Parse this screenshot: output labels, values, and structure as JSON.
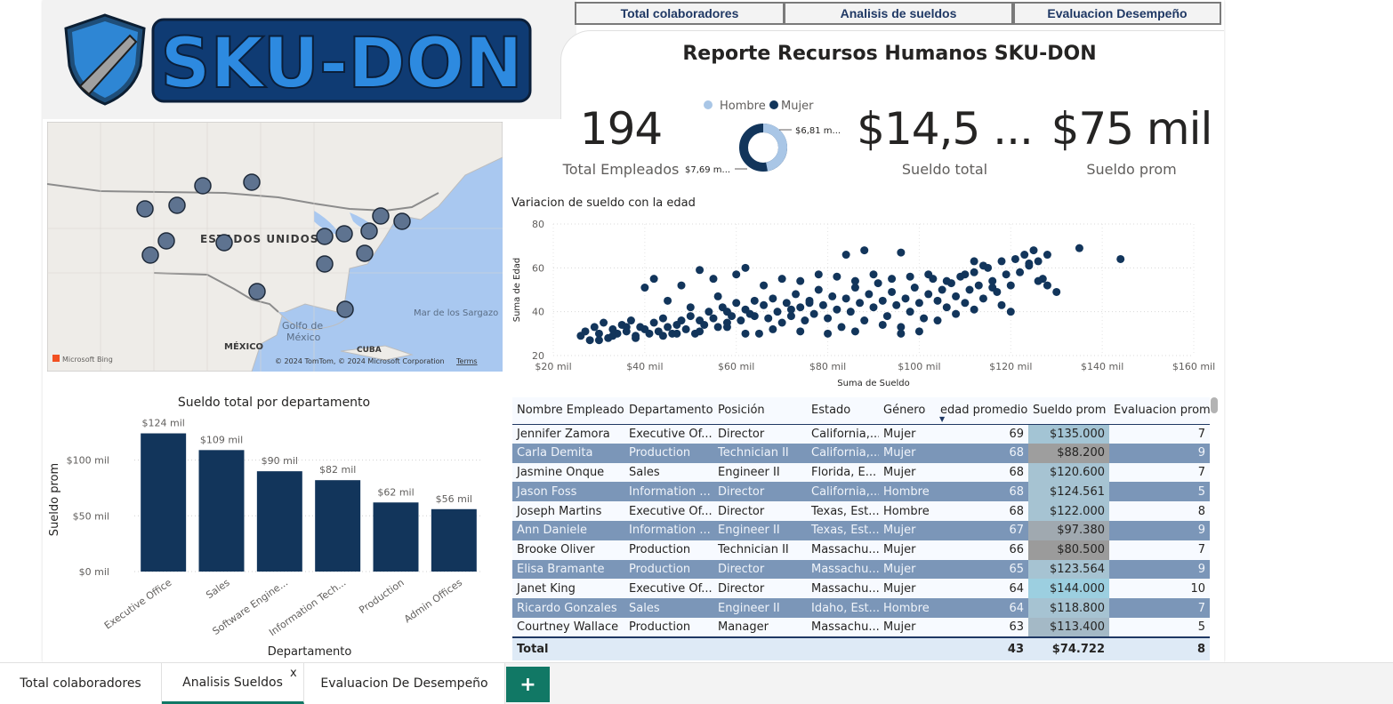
{
  "nav": {
    "btn1": "Total colaboradores",
    "btn2": "Analisis de sueldos",
    "btn3": "Evaluacion Desempeño"
  },
  "logo_text": "SKU-DON",
  "report_title": "Reporte Recursos Humanos SKU-DON",
  "kpis": {
    "total_empleados": {
      "value": "194",
      "label": "Total Empleados"
    },
    "sueldo_total": {
      "value": "$14,5 ...",
      "label": "Sueldo total"
    },
    "sueldo_prom": {
      "value": "$75 mil",
      "label": "Sueldo prom"
    }
  },
  "donut": {
    "legend": [
      {
        "name": "Hombre",
        "color": "#a9c6e6"
      },
      {
        "name": "Mujer",
        "color": "#12355b"
      }
    ],
    "label_hombre": "$6,81 m...",
    "label_mujer": "$7,69 m...",
    "hombre_value": 6.81,
    "mujer_value": 7.69
  },
  "map": {
    "country_label": "ESTADOS UNIDOS",
    "gulf_label1": "Golfo de",
    "gulf_label2": "México",
    "sea_label": "Mar de los Sargazo",
    "mexico_label": "MÉXICO",
    "cuba_label": "CUBA",
    "bing_label": "Microsoft Bing",
    "copyright": "© 2024 TomTom, © 2024 Microsoft Corporation",
    "terms": "Terms"
  },
  "chart_data": [
    {
      "type": "bar",
      "title": "Sueldo total por departamento",
      "xlabel": "Departamento",
      "ylabel": "Sueldo prom",
      "categories": [
        "Executive Office",
        "Sales",
        "Software Engine...",
        "Information Tech...",
        "Production",
        "Admin Offices"
      ],
      "values": [
        124,
        109,
        90,
        82,
        62,
        56
      ],
      "data_labels": [
        "$124 mil",
        "$109 mil",
        "$90 mil",
        "$82 mil",
        "$62 mil",
        "$56 mil"
      ],
      "yticks": [
        "$0 mil",
        "$50 mil",
        "$100 mil"
      ],
      "ylim": [
        0,
        130
      ],
      "color": "#12355b"
    },
    {
      "type": "scatter",
      "title": "Variacion de sueldo con la edad",
      "xlabel": "Suma de Sueldo",
      "ylabel": "Suma de Edad",
      "xticks": [
        "$20 mil",
        "$40 mil",
        "$60 mil",
        "$80 mil",
        "$100 mil",
        "$120 mil",
        "$140 mil",
        "$160 mil"
      ],
      "yticks": [
        "20",
        "40",
        "60",
        "80"
      ],
      "xlim": [
        20,
        160
      ],
      "ylim": [
        20,
        80
      ],
      "color": "#12355b",
      "points": [
        [
          26,
          29
        ],
        [
          27,
          31
        ],
        [
          28,
          27
        ],
        [
          29,
          33
        ],
        [
          30,
          30
        ],
        [
          31,
          35
        ],
        [
          32,
          28
        ],
        [
          33,
          32
        ],
        [
          34,
          30
        ],
        [
          35,
          34
        ],
        [
          36,
          31
        ],
        [
          37,
          36
        ],
        [
          38,
          29
        ],
        [
          39,
          33
        ],
        [
          40,
          32
        ],
        [
          41,
          30
        ],
        [
          42,
          35
        ],
        [
          43,
          31
        ],
        [
          44,
          37
        ],
        [
          45,
          33
        ],
        [
          46,
          30
        ],
        [
          47,
          34
        ],
        [
          48,
          36
        ],
        [
          49,
          32
        ],
        [
          50,
          38
        ],
        [
          51,
          30
        ],
        [
          52,
          36
        ],
        [
          53,
          34
        ],
        [
          54,
          40
        ],
        [
          55,
          37
        ],
        [
          56,
          33
        ],
        [
          57,
          42
        ],
        [
          58,
          35
        ],
        [
          59,
          38
        ],
        [
          60,
          44
        ],
        [
          61,
          36
        ],
        [
          62,
          41
        ],
        [
          63,
          39
        ],
        [
          64,
          45
        ],
        [
          65,
          30
        ],
        [
          66,
          43
        ],
        [
          67,
          37
        ],
        [
          68,
          46
        ],
        [
          69,
          40
        ],
        [
          70,
          35
        ],
        [
          71,
          44
        ],
        [
          72,
          38
        ],
        [
          73,
          48
        ],
        [
          74,
          42
        ],
        [
          75,
          36
        ],
        [
          76,
          45
        ],
        [
          77,
          39
        ],
        [
          78,
          50
        ],
        [
          79,
          43
        ],
        [
          80,
          37
        ],
        [
          81,
          47
        ],
        [
          82,
          41
        ],
        [
          83,
          33
        ],
        [
          84,
          46
        ],
        [
          85,
          40
        ],
        [
          86,
          51
        ],
        [
          87,
          44
        ],
        [
          88,
          36
        ],
        [
          89,
          48
        ],
        [
          90,
          42
        ],
        [
          91,
          53
        ],
        [
          92,
          45
        ],
        [
          93,
          38
        ],
        [
          94,
          49
        ],
        [
          95,
          43
        ],
        [
          96,
          33
        ],
        [
          97,
          46
        ],
        [
          98,
          40
        ],
        [
          99,
          51
        ],
        [
          100,
          44
        ],
        [
          101,
          37
        ],
        [
          102,
          48
        ],
        [
          103,
          55
        ],
        [
          104,
          45
        ],
        [
          105,
          50
        ],
        [
          106,
          42
        ],
        [
          107,
          53
        ],
        [
          108,
          47
        ],
        [
          109,
          56
        ],
        [
          110,
          44
        ],
        [
          111,
          50
        ],
        [
          112,
          58
        ],
        [
          113,
          52
        ],
        [
          114,
          46
        ],
        [
          115,
          60
        ],
        [
          116,
          54
        ],
        [
          117,
          49
        ],
        [
          118,
          63
        ],
        [
          119,
          57
        ],
        [
          120,
          52
        ],
        [
          121,
          64
        ],
        [
          122,
          58
        ],
        [
          123,
          66
        ],
        [
          124,
          61
        ],
        [
          125,
          68
        ],
        [
          126,
          63
        ],
        [
          127,
          55
        ],
        [
          128,
          66
        ],
        [
          130,
          49
        ],
        [
          135,
          69
        ],
        [
          144,
          64
        ],
        [
          40,
          51
        ],
        [
          42,
          55
        ],
        [
          48,
          52
        ],
        [
          52,
          59
        ],
        [
          55,
          55
        ],
        [
          60,
          57
        ],
        [
          62,
          60
        ],
        [
          66,
          52
        ],
        [
          70,
          55
        ],
        [
          74,
          54
        ],
        [
          78,
          57
        ],
        [
          82,
          56
        ],
        [
          86,
          54
        ],
        [
          90,
          57
        ],
        [
          94,
          55
        ],
        [
          98,
          56
        ],
        [
          102,
          57
        ],
        [
          106,
          54
        ],
        [
          110,
          57
        ],
        [
          116,
          51
        ],
        [
          120,
          40
        ],
        [
          124,
          62
        ],
        [
          62,
          30
        ],
        [
          68,
          32
        ],
        [
          74,
          31
        ],
        [
          80,
          30
        ],
        [
          86,
          31
        ],
        [
          96,
          30
        ],
        [
          84,
          66
        ],
        [
          88,
          68
        ],
        [
          96,
          67
        ],
        [
          112,
          63
        ],
        [
          114,
          61
        ],
        [
          126,
          54
        ],
        [
          128,
          52
        ],
        [
          45,
          45
        ],
        [
          50,
          42
        ],
        [
          56,
          47
        ],
        [
          58,
          40
        ],
        [
          64,
          38
        ],
        [
          72,
          41
        ],
        [
          76,
          44
        ],
        [
          92,
          34
        ],
        [
          100,
          31
        ],
        [
          104,
          36
        ],
        [
          108,
          39
        ],
        [
          112,
          41
        ],
        [
          118,
          43
        ],
        [
          30,
          27
        ],
        [
          33,
          29
        ],
        [
          36,
          33
        ],
        [
          38,
          28
        ],
        [
          44,
          29
        ],
        [
          47,
          30
        ],
        [
          52,
          31
        ],
        [
          58,
          33
        ]
      ]
    }
  ],
  "table": {
    "columns": [
      "Nombre Empleado",
      "Departamento",
      "Posición",
      "Estado",
      "Género",
      "edad promedio",
      "Sueldo prom",
      "Evaluacion prom"
    ],
    "rows": [
      [
        "Jennifer Zamora",
        "Executive Of...",
        "Director",
        "California,...",
        "Mujer",
        "69",
        "$135.000",
        "7"
      ],
      [
        "Carla Demita",
        "Production",
        "Technician II",
        "California,...",
        "Mujer",
        "68",
        "$88.200",
        "9"
      ],
      [
        "Jasmine Onque",
        "Sales",
        "Engineer II",
        "Florida, E...",
        "Mujer",
        "68",
        "$120.600",
        "7"
      ],
      [
        "Jason Foss",
        "Information ...",
        "Director",
        "California,...",
        "Hombre",
        "68",
        "$124.561",
        "5"
      ],
      [
        "Joseph Martins",
        "Executive Of...",
        "Director",
        "Texas, Est...",
        "Hombre",
        "68",
        "$122.000",
        "8"
      ],
      [
        "Ann Daniele",
        "Information ...",
        "Engineer II",
        "Texas, Est...",
        "Mujer",
        "67",
        "$97.380",
        "9"
      ],
      [
        "Brooke Oliver",
        "Production",
        "Technician II",
        "Massachu...",
        "Mujer",
        "66",
        "$80.500",
        "7"
      ],
      [
        "Elisa Bramante",
        "Production",
        "Director",
        "Massachu...",
        "Mujer",
        "65",
        "$123.564",
        "9"
      ],
      [
        "Janet King",
        "Executive Of...",
        "Director",
        "Massachu...",
        "Mujer",
        "64",
        "$144.000",
        "10"
      ],
      [
        "Ricardo Gonzales",
        "Sales",
        "Engineer II",
        "Idaho, Est...",
        "Hombre",
        "64",
        "$118.800",
        "7"
      ],
      [
        "Courtney Wallace",
        "Production",
        "Manager",
        "Massachu...",
        "Mujer",
        "63",
        "$113.400",
        "5"
      ]
    ],
    "sueldo_colors": [
      "#a3c4d4",
      "#9e9e9e",
      "#a6c3d2",
      "#a6c3d2",
      "#a6c3d2",
      "#a0a9b0",
      "#9b9b9b",
      "#a6c3d2",
      "#9ccfe0",
      "#a6c3d2",
      "#a4b9c6"
    ],
    "total": [
      "Total",
      "",
      "",
      "",
      "",
      "43",
      "$74.722",
      "8"
    ]
  },
  "tabs": [
    "Total colaboradores",
    "Analisis Sueldos",
    "Evaluacion De Desempeño"
  ],
  "tab_close": "x",
  "add_tab": "+"
}
